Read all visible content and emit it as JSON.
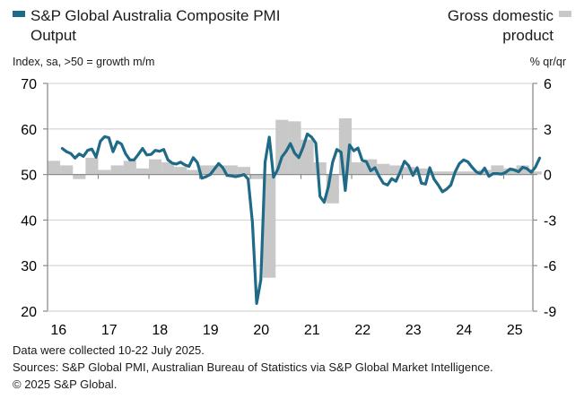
{
  "legend": {
    "pmi_line1": "S&P Global Australia Composite PMI",
    "pmi_line2": "Output",
    "gdp_line1": "Gross domestic",
    "gdp_line2": "product",
    "pmi_color": "#1f6a87",
    "gdp_color": "#c8c8c8"
  },
  "axis_labels": {
    "left": "Index, sa, >50 = growth m/m",
    "right": "% qr/qr"
  },
  "footer": {
    "line1": "Data were collected 10-22 July 2025.",
    "line2": "Sources: S&P Global PMI, Australian Bureau of Statistics via S&P Global Market Intelligence.",
    "line3": "© 2025 S&P Global."
  },
  "chart_data": {
    "type": "line+bar",
    "title": "S&P Global Australia Composite PMI Output vs Gross domestic product",
    "xlabel": "",
    "x_tick_labels": [
      "16",
      "17",
      "18",
      "19",
      "20",
      "21",
      "22",
      "23",
      "24",
      "25"
    ],
    "x_range": [
      "2016-01",
      "2025-08"
    ],
    "left_axis": {
      "label": "Index, sa, >50 = growth m/m",
      "range": [
        20,
        70
      ],
      "ticks": [
        70,
        60,
        50,
        40,
        30,
        20
      ]
    },
    "right_axis": {
      "label": "% qr/qr",
      "range": [
        -9,
        6
      ],
      "ticks": [
        6,
        3,
        0,
        -3,
        -6,
        -9
      ]
    },
    "grid": true,
    "series": [
      {
        "name": "S&P Global Australia Composite PMI Output",
        "type": "line",
        "axis": "left",
        "start": "2016-04",
        "frequency": "monthly",
        "values": [
          55.7,
          55.0,
          54.6,
          53.6,
          54.5,
          54.0,
          55.3,
          55.6,
          53.8,
          57.3,
          58.3,
          58.1,
          55.0,
          57.2,
          56.7,
          54.5,
          53.2,
          53.2,
          54.4,
          55.7,
          54.3,
          54.4,
          55.3,
          55.1,
          55.5,
          53.2,
          52.5,
          52.3,
          52.7,
          52.1,
          51.8,
          53.7,
          52.6,
          49.2,
          49.5,
          50.0,
          51.2,
          52.4,
          51.5,
          49.8,
          49.7,
          49.5,
          49.7,
          50.0,
          49.0,
          39.4,
          21.7,
          26.9,
          52.7,
          58.2,
          49.4,
          51.1,
          53.9,
          55.1,
          56.8,
          54.7,
          53.7,
          56.0,
          58.9,
          58.2,
          56.9,
          45.2,
          43.9,
          47.4,
          52.7,
          55.5,
          54.9,
          46.5,
          56.5,
          55.2,
          55.8,
          53.1,
          52.8,
          50.8,
          51.5,
          49.6,
          48.1,
          47.7,
          49.1,
          48.5,
          50.6,
          52.9,
          51.9,
          49.8,
          51.5,
          48.1,
          47.9,
          51.5,
          49.0,
          47.7,
          46.2,
          46.8,
          47.7,
          50.6,
          52.4,
          53.2,
          52.8,
          51.6,
          50.6,
          50.2,
          51.4,
          49.6,
          50.2,
          50.2,
          50.1,
          50.5,
          51.2,
          51.0,
          50.6,
          51.6,
          51.3,
          50.5,
          51.6,
          53.6
        ]
      },
      {
        "name": "Gross domestic product",
        "type": "bar",
        "axis": "right",
        "start": "2016-Q1",
        "frequency": "quarterly",
        "values": [
          0.9,
          0.6,
          -0.3,
          1.1,
          0.3,
          0.6,
          0.9,
          0.4,
          1.0,
          0.8,
          0.5,
          0.3,
          0.6,
          0.6,
          0.6,
          0.5,
          -0.3,
          -6.8,
          3.6,
          3.5,
          2.3,
          0.8,
          -1.9,
          3.7,
          0.8,
          1.0,
          0.7,
          0.6,
          0.5,
          0.4,
          0.2,
          0.2,
          0.2,
          0.2,
          0.3,
          0.6,
          0.4,
          0.6,
          0.2
        ]
      }
    ]
  }
}
